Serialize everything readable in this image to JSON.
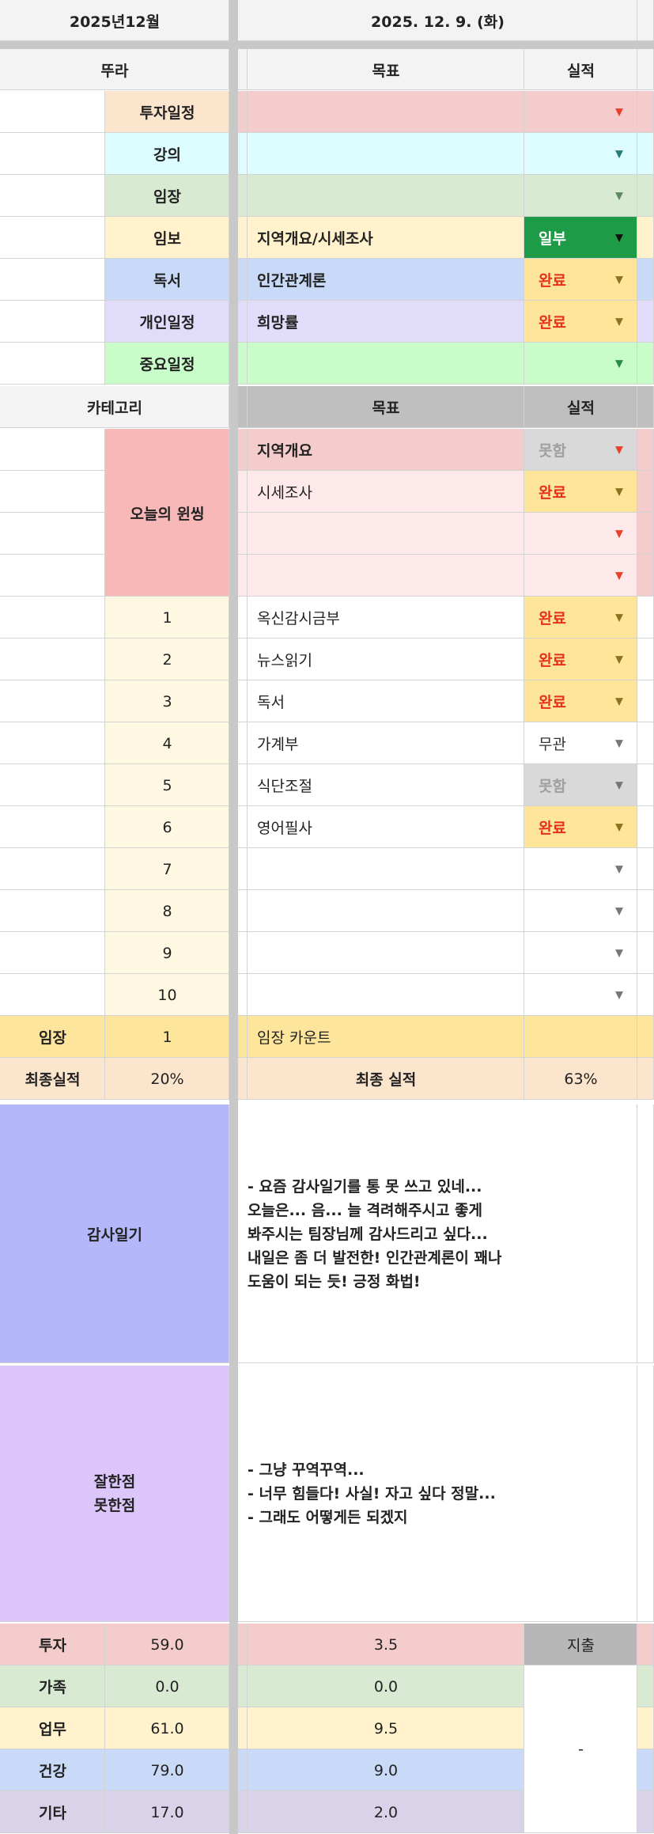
{
  "header": {
    "month": "2025년12월",
    "date": "2025. 12. 9. (화)"
  },
  "schedule": {
    "category_header": "뚜라",
    "goal_header": "목표",
    "result_header": "실적",
    "rows": [
      {
        "label": "투자일정",
        "goal": "",
        "result": "",
        "label_bg": "#fce5cd",
        "bg": "#f4cccc",
        "arrow": "#e8402a"
      },
      {
        "label": "강의",
        "goal": "",
        "result": "",
        "label_bg": "#dcfcff",
        "bg": "#dcfcff",
        "arrow": "#2a7a7a"
      },
      {
        "label": "임장",
        "goal": "",
        "result": "",
        "label_bg": "#d9ead3",
        "bg": "#d9ead3",
        "arrow": "#5f8a5f"
      },
      {
        "label": "임보",
        "goal": "지역개요/시세조사",
        "result": "일부",
        "label_bg": "#fff2cc",
        "bg": "#fff2cc",
        "arrow": "#111111"
      },
      {
        "label": "독서",
        "goal": "인간관계론",
        "result": "완료",
        "label_bg": "#c9daf8",
        "bg": "#c9daf8",
        "arrow": "#7a6a2a"
      },
      {
        "label": "개인일정",
        "goal": "희망률",
        "result": "완료",
        "label_bg": "#e0dcfa",
        "bg": "#e0dcfa",
        "arrow": "#7a6a2a"
      },
      {
        "label": "중요일정",
        "goal": "",
        "result": "",
        "label_bg": "#c8fcc8",
        "bg": "#c8fcc8",
        "arrow": "#2a8a4a"
      }
    ]
  },
  "tasks": {
    "category_header": "카테고리",
    "goal_header": "목표",
    "result_header": "실적",
    "wins_label": "오늘의 윈씽",
    "wins": [
      {
        "goal": "지역개요",
        "result": "못함"
      },
      {
        "goal": "시세조사",
        "result": "완료"
      },
      {
        "goal": "",
        "result": ""
      },
      {
        "goal": "",
        "result": ""
      }
    ],
    "numbered": [
      {
        "no": "1",
        "goal": "옥신감시금부",
        "result": "완료"
      },
      {
        "no": "2",
        "goal": "뉴스읽기",
        "result": "완료"
      },
      {
        "no": "3",
        "goal": "독서",
        "result": "완료"
      },
      {
        "no": "4",
        "goal": "가계부",
        "result": "무관"
      },
      {
        "no": "5",
        "goal": "식단조절",
        "result": "못함"
      },
      {
        "no": "6",
        "goal": "영어필사",
        "result": "완료"
      },
      {
        "no": "7",
        "goal": "",
        "result": ""
      },
      {
        "no": "8",
        "goal": "",
        "result": ""
      },
      {
        "no": "9",
        "goal": "",
        "result": ""
      },
      {
        "no": "10",
        "goal": "",
        "result": ""
      }
    ]
  },
  "imjang": {
    "label": "임장",
    "count": "1",
    "goal": "임장 카운트"
  },
  "final": {
    "label": "최종실적",
    "value": "20%",
    "goal_label": "최종 실적",
    "goal_value": "63%"
  },
  "gratitude": {
    "label": "감사일기",
    "text": "- 요즘 감사일기를 통 못 쓰고 있네...\n오늘은... 음... 늘 격려해주시고 좋게\n봐주시는 팀장님께 감사드리고 싶다...\n내일은 좀 더 발전한! 인간관계론이 꽤나\n도움이 되는 듯! 긍정 화법!"
  },
  "review": {
    "label": "잘한점\n못한점",
    "text": "- 그냥 꾸역꾸역...\n- 너무 힘들다! 사실! 자고 싶다 정말...\n- 그래도 어떻게든 되겠지"
  },
  "spending": {
    "header": "지출",
    "note": "-",
    "rows": [
      {
        "label": "투자",
        "total": "59.0",
        "today": "3.5",
        "bg": "#f4cccc"
      },
      {
        "label": "가족",
        "total": "0.0",
        "today": "0.0",
        "bg": "#d9ead3"
      },
      {
        "label": "업무",
        "total": "61.0",
        "today": "9.5",
        "bg": "#fff2cc"
      },
      {
        "label": "건강",
        "total": "79.0",
        "today": "9.0",
        "bg": "#c9daf8"
      },
      {
        "label": "기타",
        "total": "17.0",
        "today": "2.0",
        "bg": "#d9d2e9"
      }
    ]
  },
  "colors": {
    "header_bg": "#f3f3f3",
    "done_bg": "#ffe599",
    "done_text": "#e6301b",
    "miss_bg": "#d9d9d9",
    "miss_text": "#a0a0a0",
    "partial_bg": "#1e9b46",
    "partial_text": "#ffffff",
    "wins_label_bg": "#f8b8b8",
    "wins_first_bg": "#f4cccc",
    "wins_bg": "#fde9e9",
    "number_bg": "#fef8e3",
    "imjang_bg": "#fde69b",
    "final_bg": "#fce5cd",
    "gratitude_bg": "#b4b8fb",
    "review_bg": "#dcc6fa",
    "dark_header_bg": "#bfbfbf",
    "spend_header_bg": "#b7b7b7"
  }
}
